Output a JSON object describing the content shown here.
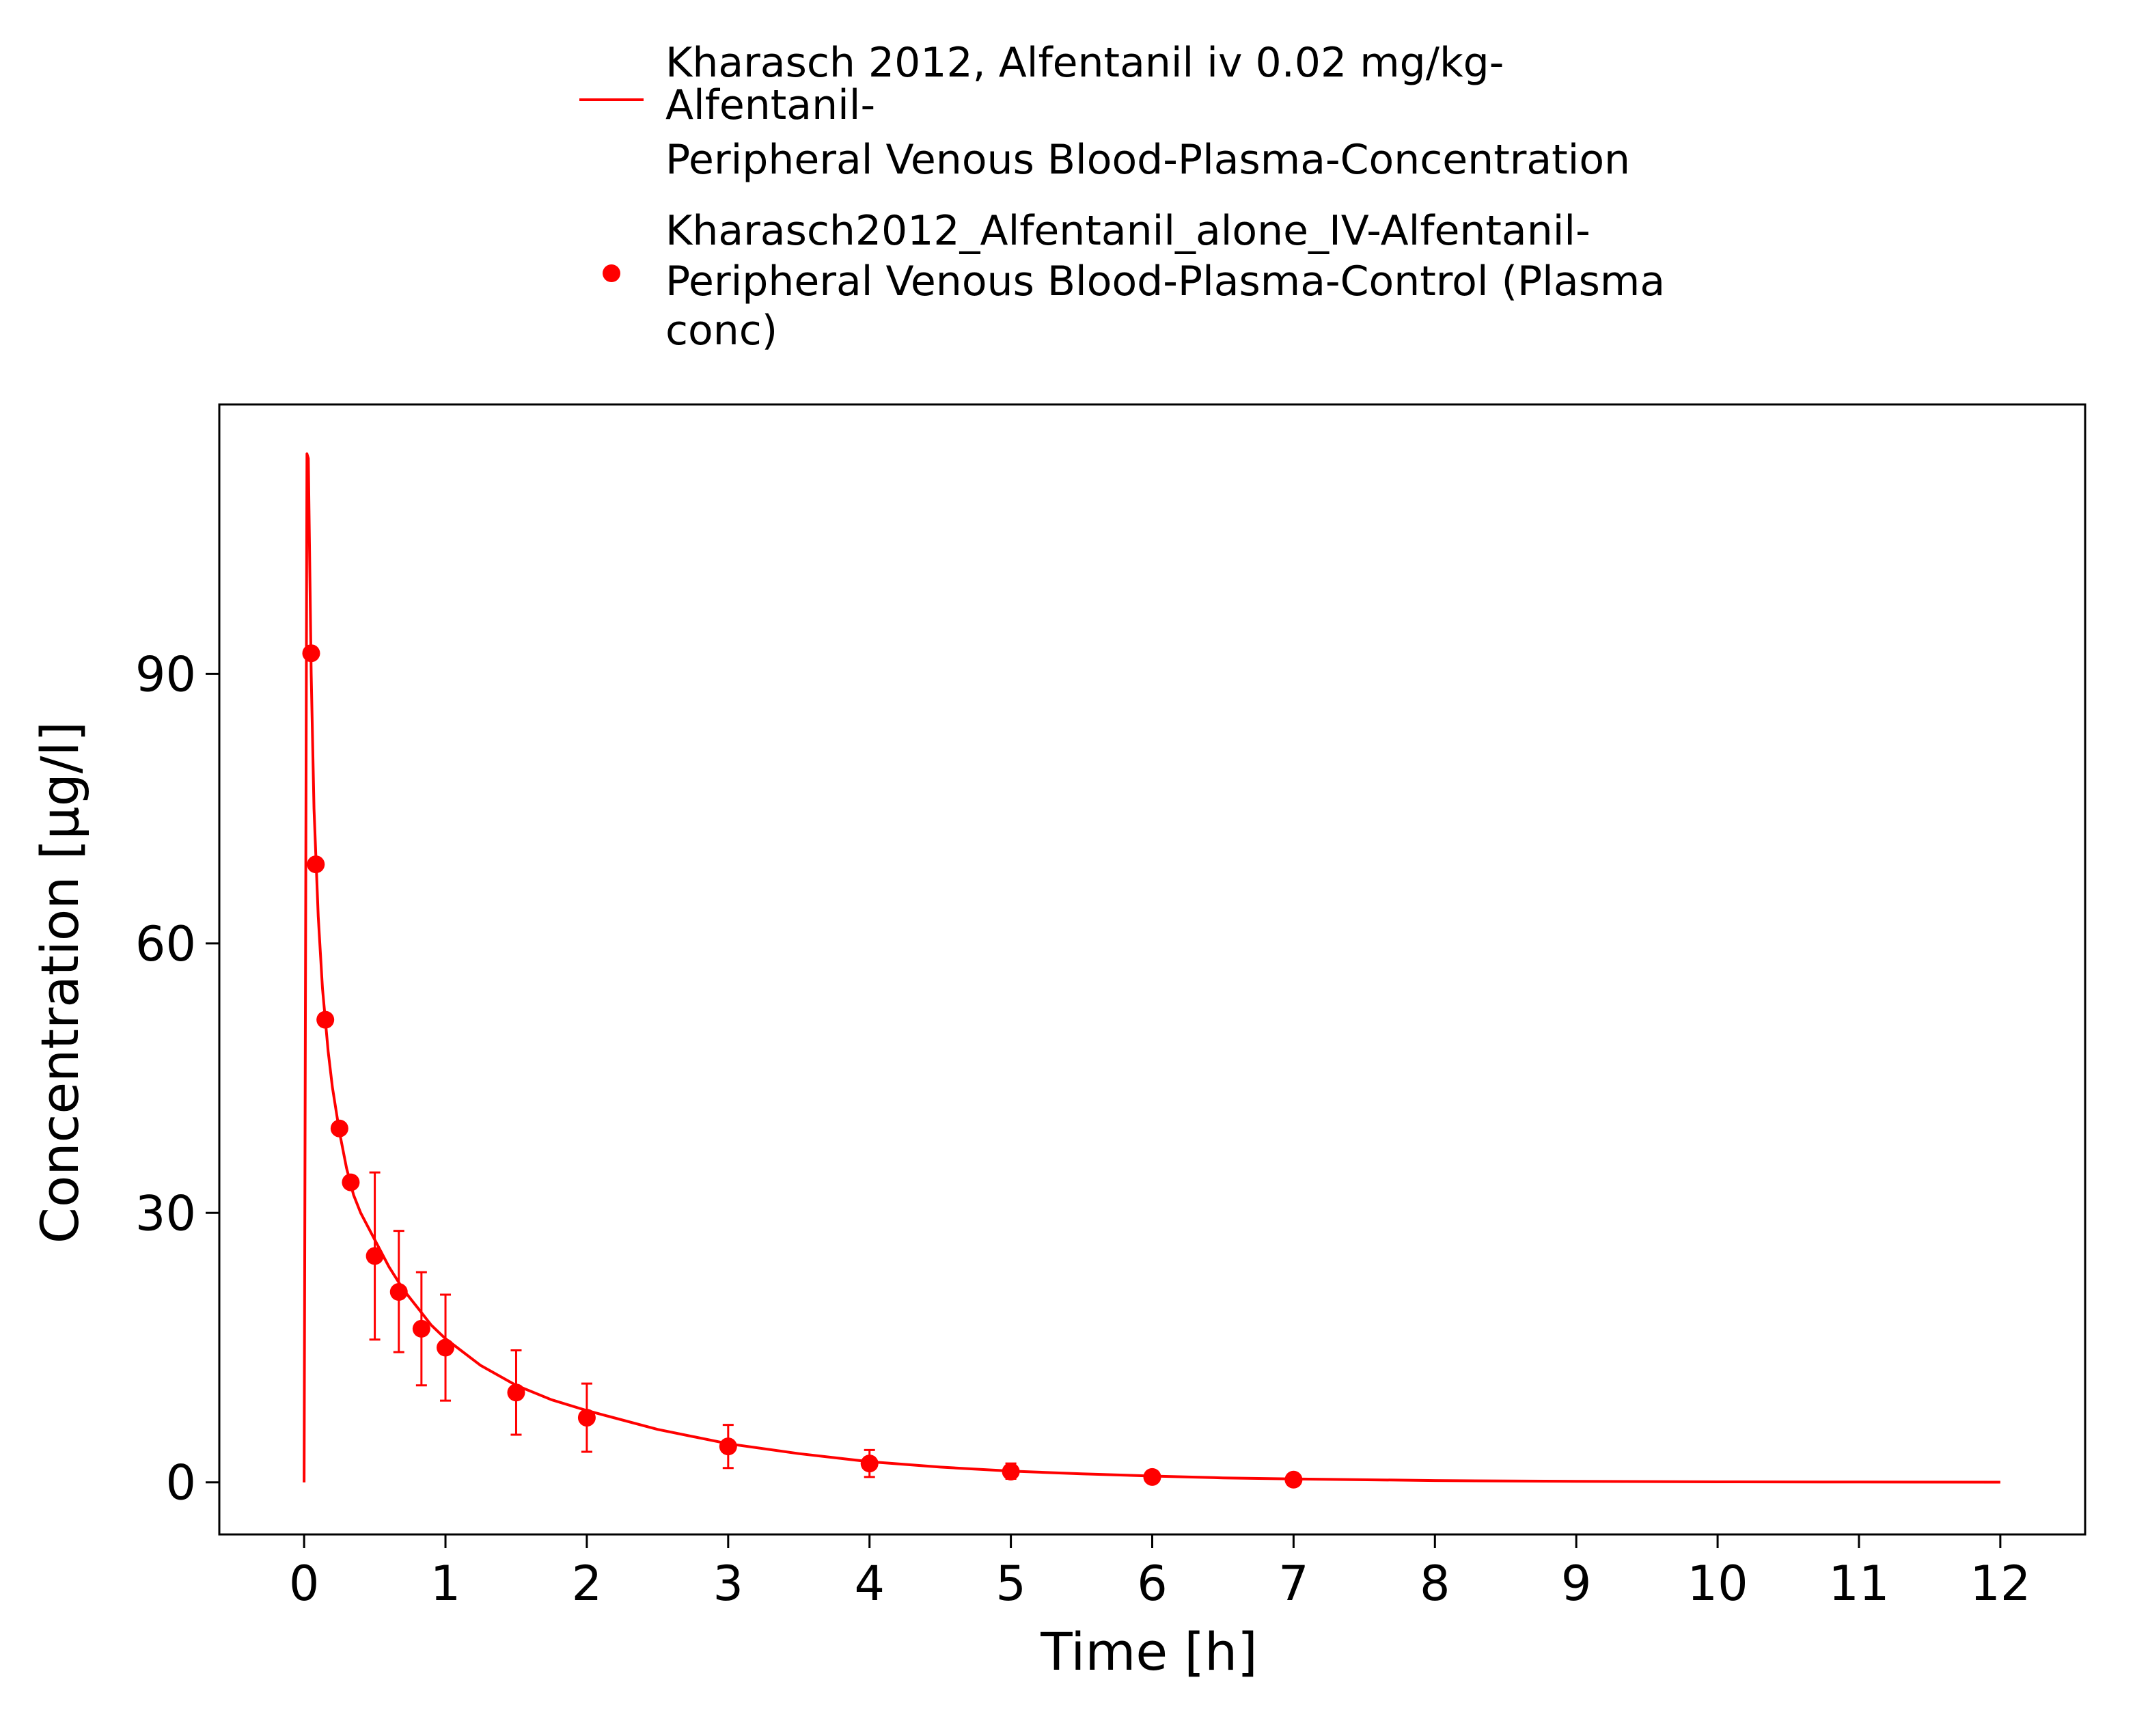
{
  "chart_data": {
    "type": "scatter",
    "title": "",
    "xlabel": "Time [h]",
    "ylabel": "Concentration [µg/l]",
    "xlim": [
      -0.6,
      12.6
    ],
    "ylim": [
      -5.8,
      120
    ],
    "x_ticks": [
      "0",
      "1",
      "2",
      "3",
      "4",
      "5",
      "6",
      "7",
      "8",
      "9",
      "10",
      "11",
      "12"
    ],
    "y_ticks": [
      "0",
      "30",
      "60",
      "90"
    ],
    "x_tick_values": [
      0,
      1,
      2,
      3,
      4,
      5,
      6,
      7,
      8,
      9,
      10,
      11,
      12
    ],
    "y_tick_values": [
      0,
      30,
      60,
      90
    ],
    "grid": false,
    "legend_position": "top",
    "series": [
      {
        "type": "line",
        "label_lines": [
          "Kharasch 2012, Alfentanil iv 0.02 mg/kg-",
          "Alfentanil-",
          "Peripheral Venous Blood-Plasma-Concentration"
        ],
        "color": "#ff0000",
        "x": [
          0,
          0.02,
          0.03,
          0.05,
          0.07,
          0.1,
          0.13,
          0.17,
          0.2,
          0.25,
          0.3,
          0.35,
          0.4,
          0.5,
          0.6,
          0.7,
          0.8,
          0.9,
          1.0,
          1.25,
          1.5,
          1.75,
          2.0,
          2.5,
          3.0,
          3.5,
          4.0,
          4.5,
          5.0,
          5.5,
          6.0,
          6.5,
          7.0,
          8.0,
          9.0,
          10.0,
          11.0,
          12.0
        ],
        "y": [
          0,
          114.5,
          114,
          90,
          75,
          63,
          55,
          48,
          44,
          39,
          35,
          32,
          30,
          27,
          24,
          21.5,
          19.5,
          17.5,
          16,
          13,
          10.8,
          9.2,
          8,
          5.9,
          4.3,
          3.2,
          2.3,
          1.7,
          1.25,
          0.95,
          0.7,
          0.5,
          0.38,
          0.2,
          0.11,
          0.06,
          0.03,
          0.02
        ]
      },
      {
        "type": "scatter",
        "label_lines": [
          "Kharasch2012_Alfentanil_alone_IV-Alfentanil-",
          "Peripheral Venous Blood-Plasma-Control (Plasma",
          "conc)"
        ],
        "color": "#ff0000",
        "x": [
          0.05,
          0.083,
          0.15,
          0.25,
          0.33,
          0.5,
          0.67,
          0.83,
          1.0,
          1.5,
          2.0,
          3.0,
          4.0,
          5.0,
          6.0,
          7.0
        ],
        "y": [
          92.3,
          68.8,
          51.5,
          39.4,
          33.4,
          25.2,
          21.2,
          17.1,
          15.0,
          10.0,
          7.2,
          4.0,
          2.1,
          1.2,
          0.6,
          0.3
        ],
        "error_low": [
          null,
          null,
          null,
          null,
          null,
          15.9,
          14.5,
          10.8,
          9.1,
          5.3,
          3.4,
          1.6,
          0.6,
          0.4,
          null,
          null
        ],
        "error_high": [
          null,
          null,
          null,
          null,
          null,
          34.5,
          28.0,
          23.4,
          20.9,
          14.7,
          11.0,
          6.4,
          3.6,
          2.1,
          null,
          null
        ]
      }
    ]
  }
}
